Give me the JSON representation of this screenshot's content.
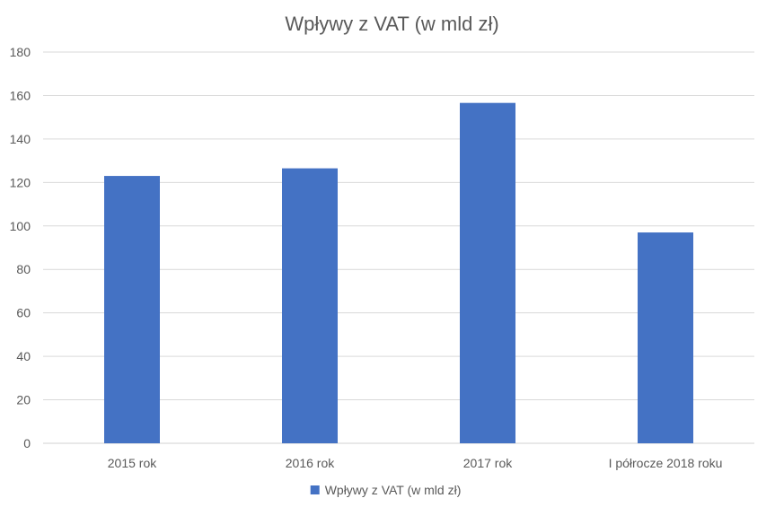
{
  "chart_data": {
    "type": "bar",
    "title": "Wpływy z VAT (w mld zł)",
    "xlabel": "",
    "ylabel": "",
    "categories": [
      "2015 rok",
      "2016 rok",
      "2017 rok",
      "I półrocze 2018 roku"
    ],
    "series": [
      {
        "name": "Wpływy z VAT (w mld zł)",
        "values": [
          123,
          126.5,
          156.6,
          97
        ],
        "color": "#4472c4"
      }
    ],
    "ylim": [
      0,
      180
    ],
    "yticks": [
      0,
      20,
      40,
      60,
      80,
      100,
      120,
      140,
      160,
      180
    ],
    "grid": true,
    "legend_position": "bottom"
  }
}
